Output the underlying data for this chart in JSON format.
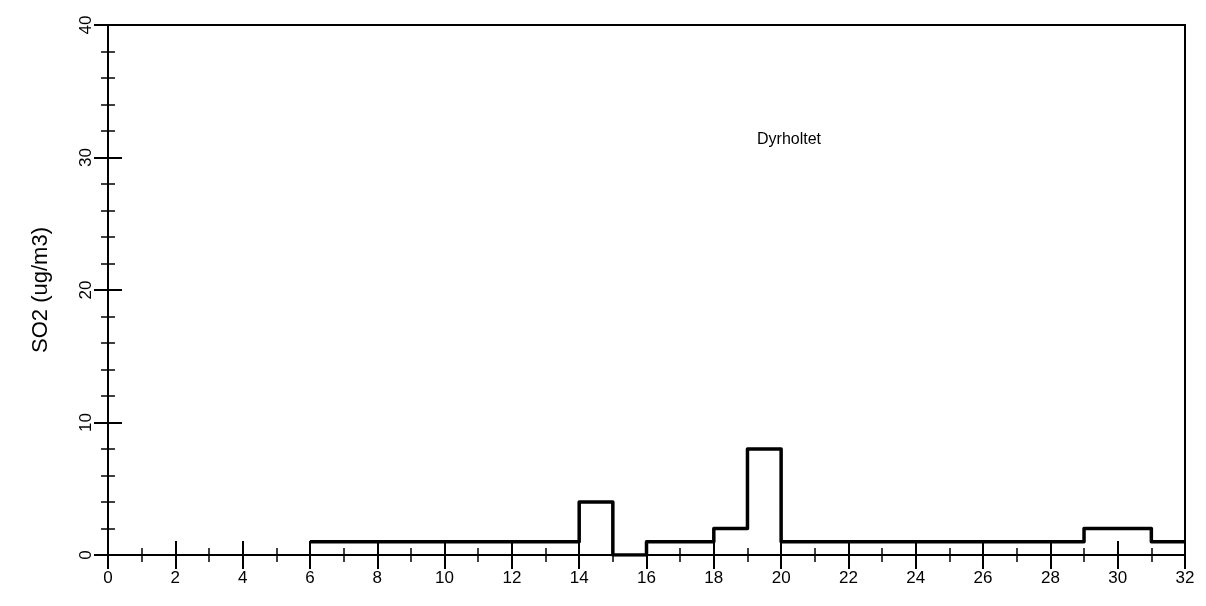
{
  "chart_data": {
    "type": "step",
    "ylabel": "SO2 (ug/m3)",
    "x": [
      6,
      7,
      8,
      9,
      10,
      11,
      12,
      13,
      14,
      15,
      16,
      17,
      18,
      19,
      20,
      21,
      22,
      23,
      24,
      25,
      26,
      27,
      28,
      29,
      30,
      31,
      32
    ],
    "series": [
      {
        "color": "#000000",
        "values": [
          1,
          1,
          1,
          1,
          1,
          1,
          1,
          1,
          4,
          0,
          1,
          1,
          2,
          8,
          1,
          1,
          1,
          1,
          1,
          1,
          1,
          1,
          1,
          2,
          2,
          1,
          1
        ]
      }
    ],
    "xlim": [
      0,
      32
    ],
    "xticks": [
      0,
      2,
      4,
      6,
      8,
      10,
      12,
      14,
      16,
      18,
      20,
      22,
      24,
      26,
      28,
      30,
      32
    ],
    "ylim": [
      0,
      40
    ],
    "yticks": [
      0,
      10,
      20,
      30,
      40
    ],
    "annotations": [
      "Dyrholtet"
    ],
    "grid": false,
    "marker": "none",
    "line_style": "solid"
  }
}
